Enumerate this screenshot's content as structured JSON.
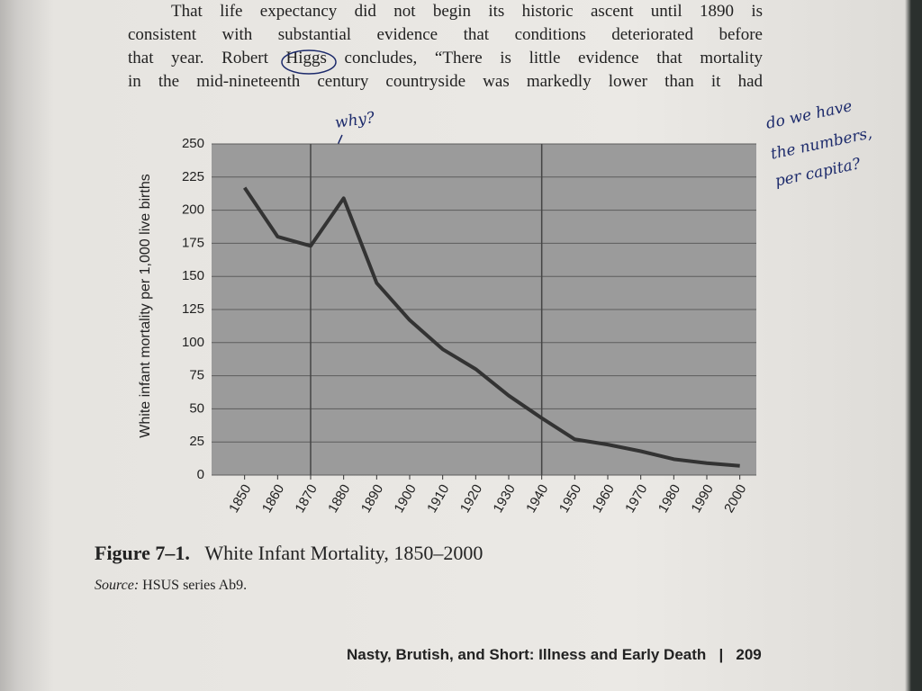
{
  "paragraph": [
    "That life expectancy did not begin its historic ascent until 1890 is",
    "consistent with substantial evidence that conditions deteriorated before",
    "that year. Robert Higgs concludes, “There is little evidence that mortality",
    "in the mid-nineteenth century countryside was markedly lower than it had"
  ],
  "annotations": {
    "arrow_note": "why?",
    "margin_note": [
      "do we have",
      "the numbers,",
      "per capita?"
    ]
  },
  "chart_data": {
    "type": "line",
    "y_label": "White infant mortality per 1,000 live births",
    "x": [
      1850,
      1860,
      1870,
      1880,
      1890,
      1900,
      1910,
      1920,
      1930,
      1940,
      1950,
      1960,
      1970,
      1980,
      1990,
      2000
    ],
    "values": [
      217,
      180,
      173,
      209,
      145,
      117,
      95,
      80,
      60,
      43,
      27,
      23,
      18,
      12,
      9,
      7
    ],
    "color": "#333333",
    "xlim": [
      1840,
      2005
    ],
    "ylim": [
      0,
      250
    ],
    "yticks": [
      0,
      25,
      50,
      75,
      100,
      125,
      150,
      175,
      200,
      225,
      250
    ],
    "grid": true,
    "x_reference_lines": [
      1870,
      1940
    ]
  },
  "caption": {
    "label": "Figure 7–1.",
    "title": "White Infant Mortality, 1850–2000"
  },
  "source": {
    "label": "Source:",
    "text": "HSUS series Ab9."
  },
  "footer": {
    "title": "Nasty, Brutish, and Short: Illness and Early Death",
    "page": "209"
  }
}
